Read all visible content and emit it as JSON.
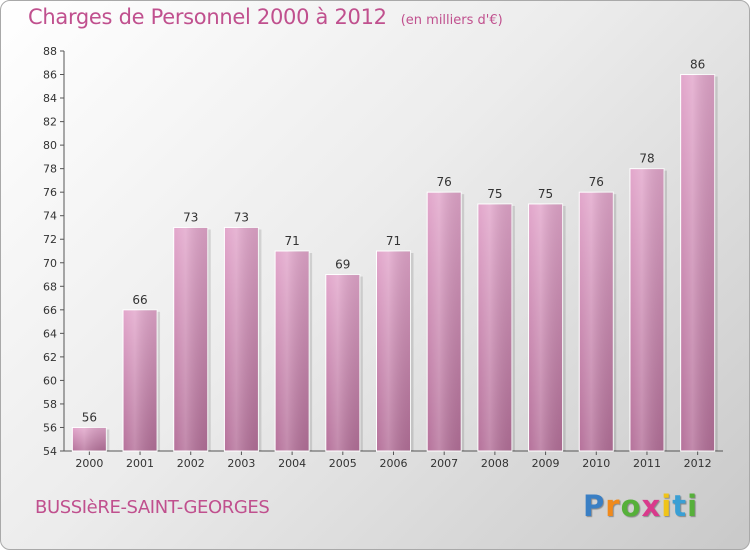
{
  "header": {
    "title": "Charges de Personnel 2000 à 2012",
    "subtitle": "(en milliers d'€)"
  },
  "footer": {
    "location": "BUSSIèRE-SAINT-GEORGES",
    "logo_letters": [
      "P",
      "r",
      "o",
      "x",
      "i",
      "t",
      "i"
    ],
    "logo_colors": [
      "#3a7fc4",
      "#f08a1c",
      "#56b03a",
      "#d93a8c",
      "#f0c419",
      "#3a9fd4",
      "#56b03a"
    ]
  },
  "chart_data": {
    "type": "bar",
    "title": "Charges de Personnel 2000 à 2012",
    "subtitle": "(en milliers d'€)",
    "categories": [
      "2000",
      "2001",
      "2002",
      "2003",
      "2004",
      "2005",
      "2006",
      "2007",
      "2008",
      "2009",
      "2010",
      "2011",
      "2012"
    ],
    "values": [
      56,
      66,
      73,
      73,
      71,
      69,
      71,
      76,
      75,
      75,
      76,
      78,
      86
    ],
    "ylim": [
      54,
      88
    ],
    "yticks": [
      54,
      56,
      58,
      60,
      62,
      64,
      66,
      68,
      70,
      72,
      74,
      76,
      78,
      80,
      82,
      84,
      86,
      88
    ],
    "grid": false,
    "bar_color": "#d98cb8",
    "data_labels": true
  }
}
